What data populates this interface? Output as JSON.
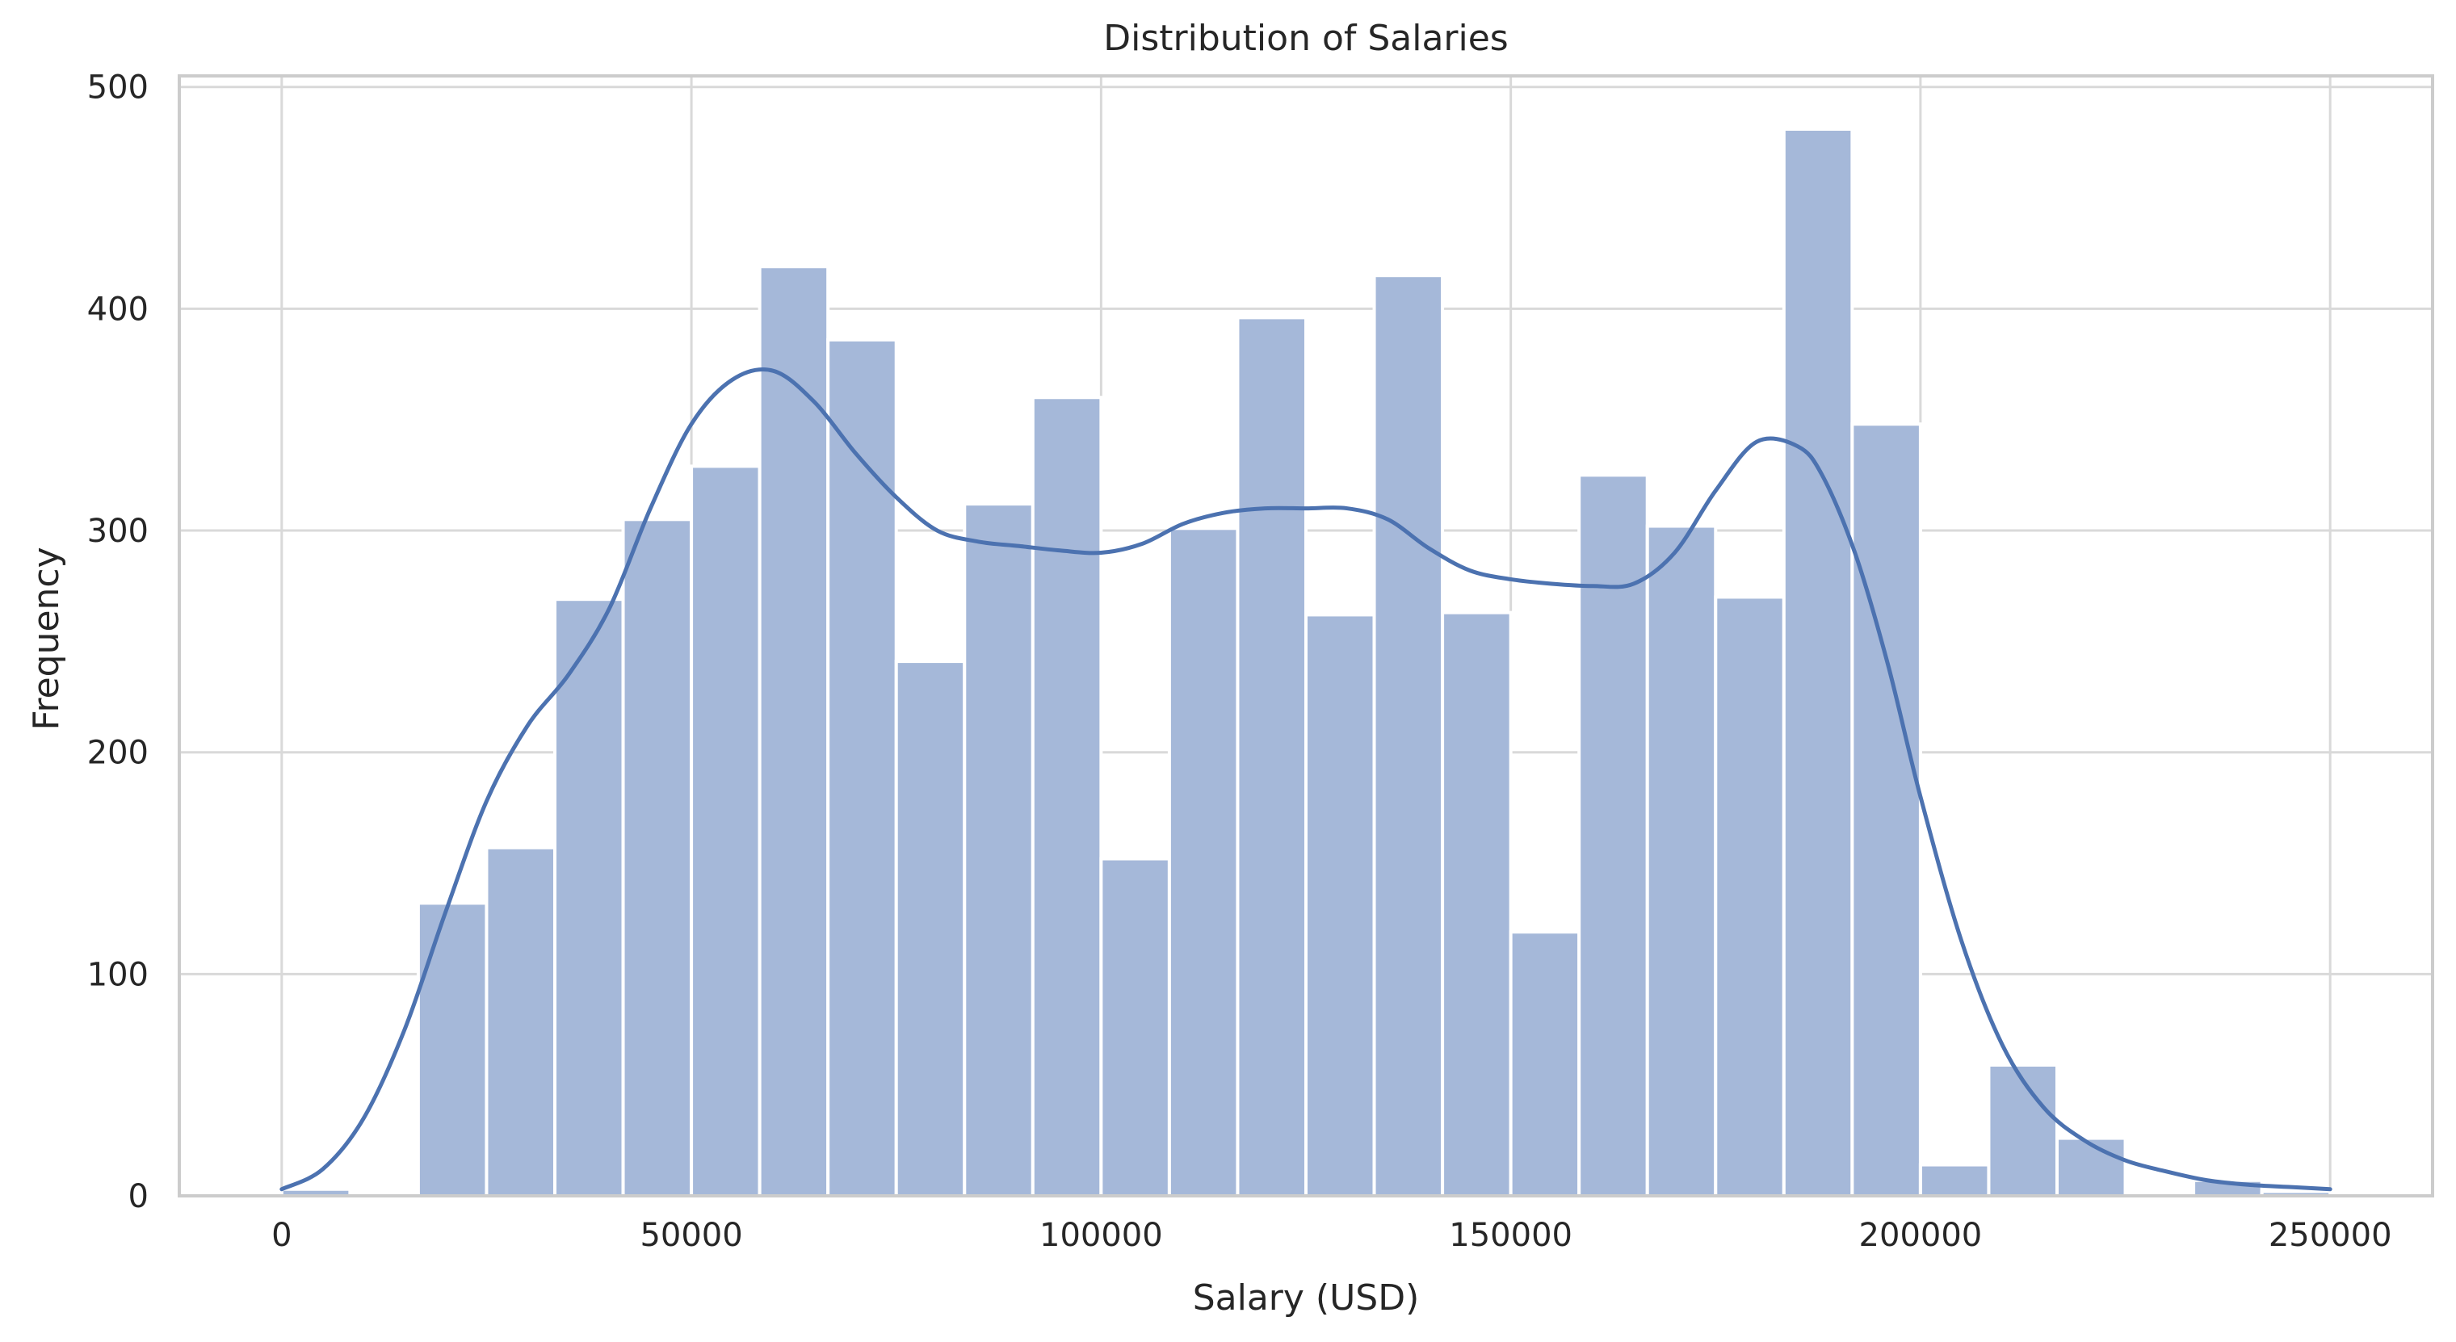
{
  "chart_data": {
    "type": "bar",
    "title": "Distribution of Salaries",
    "xlabel": "Salary (USD)",
    "ylabel": "Frequency",
    "xlim": [
      -12500,
      262500
    ],
    "ylim": [
      0,
      505
    ],
    "xticks": [
      0,
      50000,
      100000,
      150000,
      200000,
      250000
    ],
    "xtick_labels": [
      "0",
      "50000",
      "100000",
      "150000",
      "200000",
      "250000"
    ],
    "yticks": [
      0,
      100,
      200,
      300,
      400,
      500
    ],
    "ytick_labels": [
      "0",
      "100",
      "200",
      "300",
      "400",
      "500"
    ],
    "grid": true,
    "bin_edges": [
      0,
      8333.33,
      16666.67,
      25000,
      33333.33,
      41666.67,
      50000,
      58333.33,
      66666.67,
      75000,
      83333.33,
      91666.67,
      100000,
      108333.33,
      116666.67,
      125000,
      133333.33,
      141666.67,
      150000,
      158333.33,
      166666.67,
      175000,
      183333.33,
      191666.67,
      200000,
      208333.33,
      216666.67,
      225000,
      233333.33,
      241666.67,
      250000
    ],
    "counts": [
      3,
      0,
      132,
      157,
      269,
      305,
      329,
      419,
      386,
      241,
      312,
      360,
      152,
      301,
      396,
      262,
      415,
      263,
      119,
      325,
      302,
      270,
      481,
      348,
      14,
      59,
      26,
      0,
      7,
      2
    ],
    "kde": {
      "x": [
        0,
        5000,
        10000,
        15000,
        20000,
        25000,
        30000,
        35000,
        40000,
        45000,
        50000,
        55000,
        60000,
        65000,
        70000,
        75000,
        80000,
        85000,
        90000,
        95000,
        100000,
        105000,
        110000,
        115000,
        120000,
        125000,
        130000,
        135000,
        140000,
        145000,
        150000,
        155000,
        160000,
        165000,
        170000,
        175000,
        180000,
        185000,
        188000,
        192000,
        196000,
        200000,
        205000,
        210000,
        215000,
        220000,
        225000,
        230000,
        235000,
        240000,
        245000,
        250000
      ],
      "y": [
        3,
        12,
        35,
        75,
        128,
        178,
        212,
        235,
        265,
        310,
        348,
        368,
        372,
        358,
        335,
        315,
        300,
        295,
        293,
        291,
        290,
        294,
        303,
        308,
        310,
        310,
        310,
        305,
        292,
        282,
        278,
        276,
        275,
        276,
        290,
        318,
        340,
        338,
        325,
        290,
        240,
        180,
        115,
        68,
        40,
        25,
        16,
        11,
        7,
        5,
        4,
        3
      ]
    },
    "colors": {
      "bar_fill": "#a5b8d9",
      "bar_edge": "#ffffff",
      "kde_line": "#4c72b0",
      "grid": "#d9d9d9",
      "spine": "#cccccc",
      "text": "#262626"
    }
  }
}
